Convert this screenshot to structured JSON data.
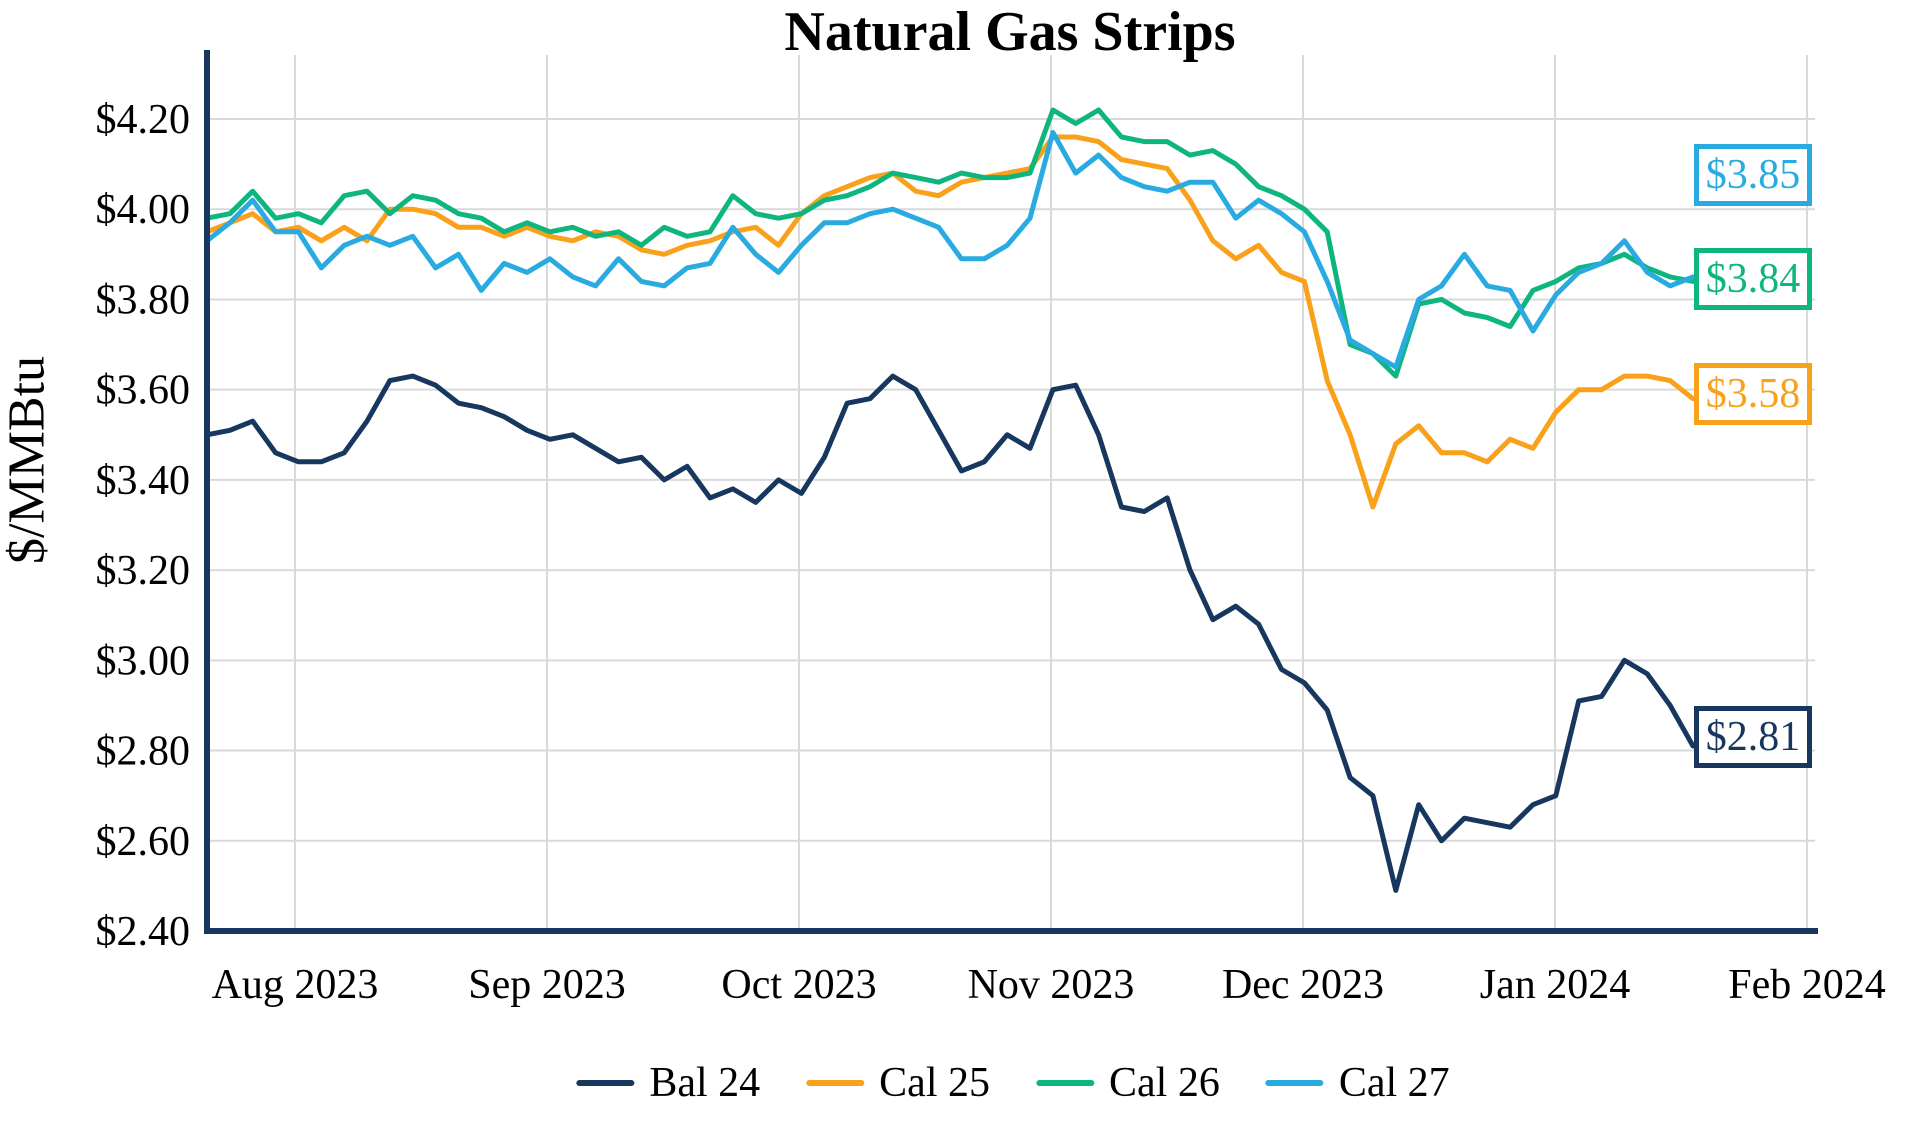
{
  "chart": {
    "accent_colors": {
      "navy": "#17375E",
      "orange": "#F9A11B",
      "green": "#0FB57F",
      "cyan": "#29ABE2",
      "gridline": "#D9D9D9",
      "axis": "#17375E",
      "text": "#000000",
      "background": "#FFFFFF"
    }
  },
  "chart_data": {
    "type": "line",
    "title": "Natural Gas Strips",
    "xlabel": "",
    "ylabel": "$/MMBtu",
    "x_ticks": [
      "Aug 2023",
      "Sep 2023",
      "Oct 2023",
      "Nov 2023",
      "Dec 2023",
      "Jan 2024",
      "Feb 2024"
    ],
    "y_tick_values": [
      2.4,
      2.6,
      2.8,
      3.0,
      3.2,
      3.4,
      3.6,
      3.8,
      4.0,
      4.2
    ],
    "y_tick_labels": [
      "$2.40",
      "$2.60",
      "$2.80",
      "$3.00",
      "$3.20",
      "$3.40",
      "$3.60",
      "$3.80",
      "$4.00",
      "$4.20"
    ],
    "ylim": [
      2.4,
      4.2
    ],
    "grid": true,
    "legend_position": "bottom",
    "x_range_note": "weekday price series from late Jul 2023 through late Jan 2024, sampled at 66 evenly spaced points",
    "series": [
      {
        "name": "Bal 24",
        "color": "#17375E",
        "end_label": "$2.81",
        "label_anchor": 2.83,
        "values": [
          3.5,
          3.51,
          3.53,
          3.46,
          3.44,
          3.44,
          3.46,
          3.53,
          3.62,
          3.63,
          3.61,
          3.57,
          3.56,
          3.54,
          3.51,
          3.49,
          3.5,
          3.47,
          3.44,
          3.45,
          3.4,
          3.43,
          3.36,
          3.38,
          3.35,
          3.4,
          3.37,
          3.45,
          3.57,
          3.58,
          3.63,
          3.6,
          3.51,
          3.42,
          3.44,
          3.5,
          3.47,
          3.6,
          3.61,
          3.5,
          3.34,
          3.33,
          3.36,
          3.2,
          3.09,
          3.12,
          3.08,
          2.98,
          2.95,
          2.89,
          2.74,
          2.7,
          2.49,
          2.68,
          2.6,
          2.65,
          2.64,
          2.63,
          2.68,
          2.7,
          2.91,
          2.92,
          3.0,
          2.97,
          2.9,
          2.81
        ]
      },
      {
        "name": "Cal 25",
        "color": "#F9A11B",
        "end_label": "$3.58",
        "label_anchor": 3.59,
        "values": [
          3.95,
          3.97,
          3.99,
          3.95,
          3.96,
          3.93,
          3.96,
          3.93,
          4.0,
          4.0,
          3.99,
          3.96,
          3.96,
          3.94,
          3.96,
          3.94,
          3.93,
          3.95,
          3.94,
          3.91,
          3.9,
          3.92,
          3.93,
          3.95,
          3.96,
          3.92,
          3.99,
          4.03,
          4.05,
          4.07,
          4.08,
          4.04,
          4.03,
          4.06,
          4.07,
          4.08,
          4.09,
          4.16,
          4.16,
          4.15,
          4.11,
          4.1,
          4.09,
          4.02,
          3.93,
          3.89,
          3.92,
          3.86,
          3.84,
          3.62,
          3.5,
          3.34,
          3.48,
          3.52,
          3.46,
          3.46,
          3.44,
          3.49,
          3.47,
          3.55,
          3.6,
          3.6,
          3.63,
          3.63,
          3.62,
          3.58
        ]
      },
      {
        "name": "Cal 26",
        "color": "#0FB57F",
        "end_label": "$3.84",
        "label_anchor": 3.845,
        "values": [
          3.98,
          3.99,
          4.04,
          3.98,
          3.99,
          3.97,
          4.03,
          4.04,
          3.99,
          4.03,
          4.02,
          3.99,
          3.98,
          3.95,
          3.97,
          3.95,
          3.96,
          3.94,
          3.95,
          3.92,
          3.96,
          3.94,
          3.95,
          4.03,
          3.99,
          3.98,
          3.99,
          4.02,
          4.03,
          4.05,
          4.08,
          4.07,
          4.06,
          4.08,
          4.07,
          4.07,
          4.08,
          4.22,
          4.19,
          4.22,
          4.16,
          4.15,
          4.15,
          4.12,
          4.13,
          4.1,
          4.05,
          4.03,
          4.0,
          3.95,
          3.7,
          3.68,
          3.63,
          3.79,
          3.8,
          3.77,
          3.76,
          3.74,
          3.82,
          3.84,
          3.87,
          3.88,
          3.9,
          3.87,
          3.85,
          3.84
        ]
      },
      {
        "name": "Cal 27",
        "color": "#29ABE2",
        "end_label": "$3.85",
        "label_anchor": 4.075,
        "values": [
          3.93,
          3.97,
          4.02,
          3.95,
          3.95,
          3.87,
          3.92,
          3.94,
          3.92,
          3.94,
          3.87,
          3.9,
          3.82,
          3.88,
          3.86,
          3.89,
          3.85,
          3.83,
          3.89,
          3.84,
          3.83,
          3.87,
          3.88,
          3.96,
          3.9,
          3.86,
          3.92,
          3.97,
          3.97,
          3.99,
          4.0,
          3.98,
          3.96,
          3.89,
          3.89,
          3.92,
          3.98,
          4.17,
          4.08,
          4.12,
          4.07,
          4.05,
          4.04,
          4.06,
          4.06,
          3.98,
          4.02,
          3.99,
          3.95,
          3.84,
          3.71,
          3.68,
          3.65,
          3.8,
          3.83,
          3.9,
          3.83,
          3.82,
          3.73,
          3.81,
          3.86,
          3.88,
          3.93,
          3.86,
          3.83,
          3.85
        ]
      }
    ]
  }
}
